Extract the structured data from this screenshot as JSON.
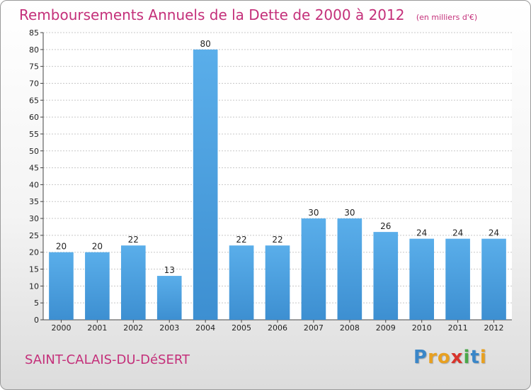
{
  "chart_data": {
    "type": "bar",
    "title": "Remboursements Annuels de la Dette de 2000 à 2012",
    "subtitle": "(en milliers d'€)",
    "categories": [
      "2000",
      "2001",
      "2002",
      "2003",
      "2004",
      "2005",
      "2006",
      "2007",
      "2008",
      "2009",
      "2010",
      "2011",
      "2012"
    ],
    "values": [
      20,
      20,
      22,
      13,
      80,
      22,
      22,
      30,
      30,
      26,
      24,
      24,
      24
    ],
    "ylim": [
      0,
      85
    ],
    "yticks": [
      0,
      5,
      10,
      15,
      20,
      25,
      30,
      35,
      40,
      45,
      50,
      55,
      60,
      65,
      70,
      75,
      80,
      85
    ],
    "grid": true,
    "bar_color": "#3d8fd1"
  },
  "commune": "SAINT-CALAIS-DU-DéSERT",
  "logo": {
    "letters": [
      "P",
      "r",
      "o",
      "x",
      "i",
      "t",
      "i"
    ],
    "colors": [
      "#3a86c8",
      "#e8a020",
      "#e8a020",
      "#d8342c",
      "#4aa84a",
      "#3a86c8",
      "#e8a020"
    ]
  }
}
